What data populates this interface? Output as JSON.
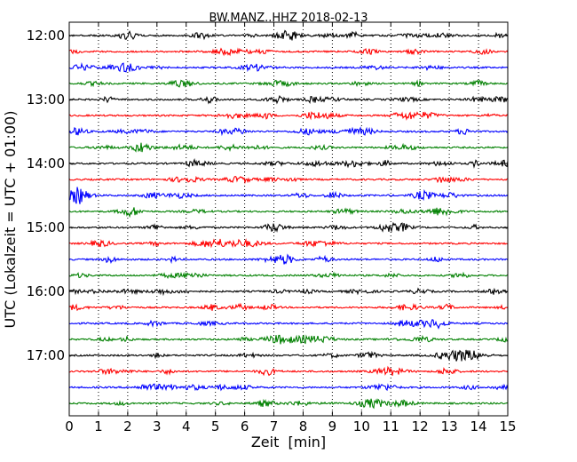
{
  "chart_data": {
    "type": "line",
    "title": "BW.MANZ..HHZ 2018-02-13",
    "xlabel": "Zeit  [min]",
    "ylabel": "UTC (Lokalzeit = UTC + 01:00)",
    "xlim": [
      0,
      15
    ],
    "x_ticks": [
      "0",
      "1",
      "2",
      "3",
      "4",
      "5",
      "6",
      "7",
      "8",
      "9",
      "10",
      "11",
      "12",
      "13",
      "14",
      "15"
    ],
    "y_ticks": [
      "12:00",
      "13:00",
      "14:00",
      "15:00",
      "16:00",
      "17:00"
    ],
    "trace_start": "12:00",
    "trace_interval_min": 15,
    "trace_count": 24,
    "trace_colors": [
      "#000000",
      "#ff0000",
      "#0000ff",
      "#008000"
    ],
    "vertical_grid": "dotted, every minute",
    "series_kind": "seismogram traces (values not legible)"
  }
}
